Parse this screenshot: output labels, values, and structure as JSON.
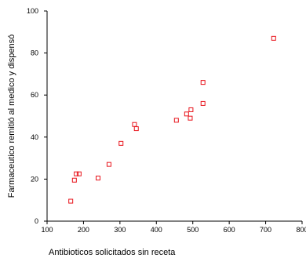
{
  "chart_data": {
    "type": "scatter",
    "title": "",
    "xlabel": "Antibioticos solicitados sin receta",
    "ylabel": "Farmaceutico remitió al medico y dispensó",
    "xlim": [
      100,
      800
    ],
    "ylim": [
      0,
      100
    ],
    "x_ticks": [
      "100",
      "200",
      "300",
      "400",
      "500",
      "600",
      "700",
      "800"
    ],
    "y_ticks": [
      "0",
      "20",
      "40",
      "60",
      "80",
      "100"
    ],
    "grid": false,
    "marker": "hollow-square",
    "marker_color": "#e8141c",
    "points": [
      {
        "x": 165,
        "y": 9.5
      },
      {
        "x": 175,
        "y": 19.5
      },
      {
        "x": 180,
        "y": 22.5
      },
      {
        "x": 188,
        "y": 22.5
      },
      {
        "x": 240,
        "y": 20.5
      },
      {
        "x": 270,
        "y": 27
      },
      {
        "x": 303,
        "y": 37
      },
      {
        "x": 340,
        "y": 46
      },
      {
        "x": 345,
        "y": 44
      },
      {
        "x": 455,
        "y": 48
      },
      {
        "x": 483,
        "y": 51
      },
      {
        "x": 493,
        "y": 49
      },
      {
        "x": 495,
        "y": 53
      },
      {
        "x": 528,
        "y": 56
      },
      {
        "x": 528,
        "y": 66
      },
      {
        "x": 722,
        "y": 87
      }
    ]
  }
}
